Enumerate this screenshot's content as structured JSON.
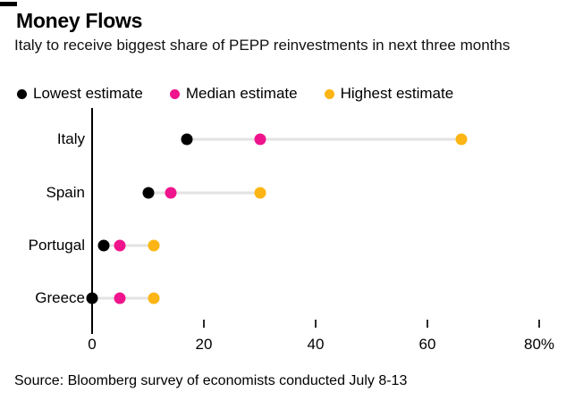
{
  "header": {
    "title": "Money Flows",
    "subtitle": "Italy to receive biggest share of PEPP reinvestments in next three months"
  },
  "legend": [
    {
      "label": "Lowest estimate",
      "color": "#000000"
    },
    {
      "label": "Median estimate",
      "color": "#f0148c"
    },
    {
      "label": "Highest estimate",
      "color": "#fcb514"
    }
  ],
  "chart_data": {
    "type": "scatter",
    "subtype": "dot-range-plot",
    "categories": [
      "Italy",
      "Spain",
      "Portugal",
      "Greece"
    ],
    "series": [
      {
        "name": "Lowest estimate",
        "color": "#000000",
        "values": [
          17,
          10,
          2,
          0
        ]
      },
      {
        "name": "Median estimate",
        "color": "#f0148c",
        "values": [
          30,
          14,
          5,
          5
        ]
      },
      {
        "name": "Highest estimate",
        "color": "#fcb514",
        "values": [
          66,
          30,
          11,
          11
        ]
      }
    ],
    "xlabel": "",
    "ylabel": "",
    "unit": "%",
    "xlim": [
      0,
      80
    ],
    "xticks": [
      0,
      20,
      40,
      60,
      80
    ],
    "xtick_labels": [
      "0",
      "20",
      "40",
      "60",
      "80%"
    ],
    "grid": false,
    "legend_position": "top",
    "connector_color": "#e3e3e3",
    "axis_color": "#000000"
  },
  "source": "Source: Bloomberg survey of economists conducted July 8-13"
}
